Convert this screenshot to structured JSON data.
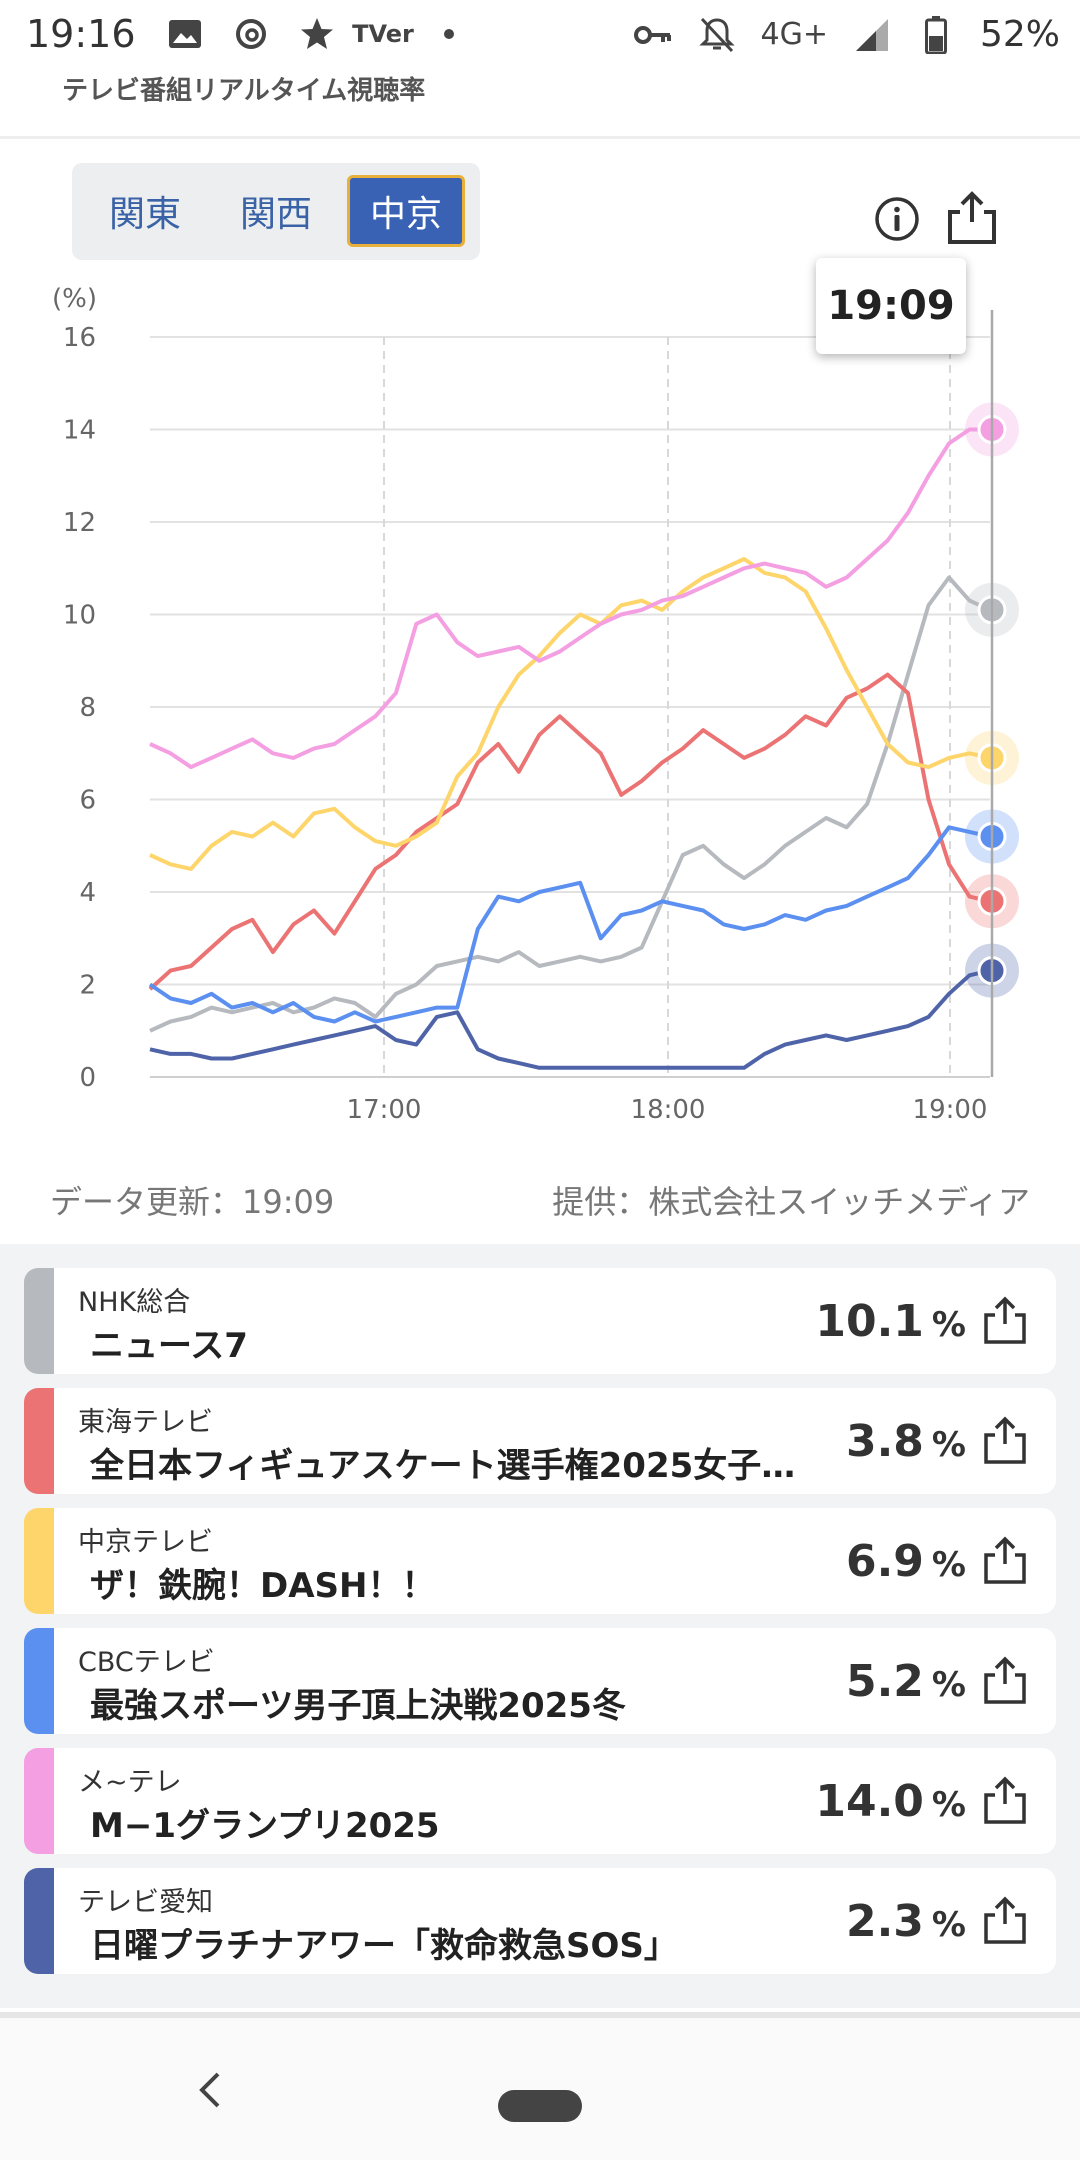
{
  "status_bar": {
    "time": "19:16",
    "left_icons": [
      "gallery-icon",
      "threads-icon",
      "star-icon",
      "tver-icon",
      "dot-icon"
    ],
    "tver_label": "TVer",
    "network": "4G+",
    "battery": "52%"
  },
  "app": {
    "subtitle": "テレビ番組リアルタイム視聴率"
  },
  "regions": {
    "items": [
      {
        "label": "関東",
        "active": false
      },
      {
        "label": "関西",
        "active": false
      },
      {
        "label": "中京",
        "active": true
      }
    ]
  },
  "tooltip": {
    "time": "19:09"
  },
  "chart_data": {
    "type": "line",
    "y_unit": "(%)",
    "ylim": [
      0,
      16
    ],
    "yticks": [
      "0",
      "2",
      "4",
      "6",
      "8",
      "10",
      "12",
      "14",
      "16"
    ],
    "xticks": [
      "17:00",
      "18:00",
      "19:00"
    ],
    "x_range": [
      "16:30",
      "19:09"
    ],
    "cursor_time": "19:09",
    "series": [
      {
        "key": "NHK",
        "color": "#b6babf",
        "values": [
          1.0,
          1.2,
          1.3,
          1.5,
          1.4,
          1.5,
          1.6,
          1.4,
          1.5,
          1.7,
          1.6,
          1.3,
          1.8,
          2.0,
          2.4,
          2.5,
          2.6,
          2.5,
          2.7,
          2.4,
          2.5,
          2.6,
          2.5,
          2.6,
          2.8,
          3.8,
          4.8,
          5.0,
          4.6,
          4.3,
          4.6,
          5.0,
          5.3,
          5.6,
          5.4,
          5.9,
          7.2,
          8.7,
          10.2,
          10.8,
          10.3,
          10.1
        ]
      },
      {
        "key": "Tokai",
        "color": "#ec7373",
        "values": [
          1.9,
          2.3,
          2.4,
          2.8,
          3.2,
          3.4,
          2.7,
          3.3,
          3.6,
          3.1,
          3.8,
          4.5,
          4.8,
          5.3,
          5.6,
          5.9,
          6.8,
          7.2,
          6.6,
          7.4,
          7.8,
          7.4,
          7.0,
          6.1,
          6.4,
          6.8,
          7.1,
          7.5,
          7.2,
          6.9,
          7.1,
          7.4,
          7.8,
          7.6,
          8.2,
          8.4,
          8.7,
          8.3,
          6.0,
          4.6,
          3.9,
          3.8
        ]
      },
      {
        "key": "Chukyo",
        "color": "#fdd56a",
        "values": [
          4.8,
          4.6,
          4.5,
          5.0,
          5.3,
          5.2,
          5.5,
          5.2,
          5.7,
          5.8,
          5.4,
          5.1,
          5.0,
          5.2,
          5.5,
          6.5,
          7.0,
          8.0,
          8.7,
          9.1,
          9.6,
          10.0,
          9.8,
          10.2,
          10.3,
          10.1,
          10.5,
          10.8,
          11.0,
          11.2,
          10.9,
          10.8,
          10.5,
          9.7,
          8.8,
          8.0,
          7.2,
          6.8,
          6.7,
          6.9,
          7.0,
          6.9
        ]
      },
      {
        "key": "CBC",
        "color": "#5b8ff0",
        "values": [
          2.0,
          1.7,
          1.6,
          1.8,
          1.5,
          1.6,
          1.4,
          1.6,
          1.3,
          1.2,
          1.4,
          1.2,
          1.3,
          1.4,
          1.5,
          1.5,
          3.2,
          3.9,
          3.8,
          4.0,
          4.1,
          4.2,
          3.0,
          3.5,
          3.6,
          3.8,
          3.7,
          3.6,
          3.3,
          3.2,
          3.3,
          3.5,
          3.4,
          3.6,
          3.7,
          3.9,
          4.1,
          4.3,
          4.8,
          5.4,
          5.3,
          5.2
        ]
      },
      {
        "key": "Metele",
        "color": "#f49fe2",
        "values": [
          7.2,
          7.0,
          6.7,
          6.9,
          7.1,
          7.3,
          7.0,
          6.9,
          7.1,
          7.2,
          7.5,
          7.8,
          8.3,
          9.8,
          10.0,
          9.4,
          9.1,
          9.2,
          9.3,
          9.0,
          9.2,
          9.5,
          9.8,
          10.0,
          10.1,
          10.3,
          10.4,
          10.6,
          10.8,
          11.0,
          11.1,
          11.0,
          10.9,
          10.6,
          10.8,
          11.2,
          11.6,
          12.2,
          13.0,
          13.7,
          14.0,
          14.0
        ]
      },
      {
        "key": "Aichi",
        "color": "#4f64a8",
        "values": [
          0.6,
          0.5,
          0.5,
          0.4,
          0.4,
          0.5,
          0.6,
          0.7,
          0.8,
          0.9,
          1.0,
          1.1,
          0.8,
          0.7,
          1.3,
          1.4,
          0.6,
          0.4,
          0.3,
          0.2,
          0.2,
          0.2,
          0.2,
          0.2,
          0.2,
          0.2,
          0.2,
          0.2,
          0.2,
          0.2,
          0.5,
          0.7,
          0.8,
          0.9,
          0.8,
          0.9,
          1.0,
          1.1,
          1.3,
          1.8,
          2.2,
          2.3
        ]
      }
    ]
  },
  "footnote": {
    "updated": "データ更新：19:09",
    "provider": "提供：株式会社スイッチメディア"
  },
  "stations": [
    {
      "station": "NHK総合",
      "program": "ニュース7",
      "rating": "10.1",
      "unit": "%",
      "color": "#b6babf"
    },
    {
      "station": "東海テレビ",
      "program": "全日本フィギュアスケート選手権2025女子…",
      "rating": "3.8",
      "unit": "%",
      "color": "#ec7373"
    },
    {
      "station": "中京テレビ",
      "program": "ザ！鉄腕！DASH！！",
      "rating": "6.9",
      "unit": "%",
      "color": "#fdd56a"
    },
    {
      "station": "CBCテレビ",
      "program": "最強スポーツ男子頂上決戦2025冬",
      "rating": "5.2",
      "unit": "%",
      "color": "#5b8ff0"
    },
    {
      "station": "メ~テレ",
      "program": "M−1グランプリ2025",
      "rating": "14.0",
      "unit": "%",
      "color": "#f49fe2"
    },
    {
      "station": "テレビ愛知",
      "program": "日曜プラチナアワー「救命救急SOS」",
      "rating": "2.3",
      "unit": "%",
      "color": "#4f64a8"
    }
  ]
}
